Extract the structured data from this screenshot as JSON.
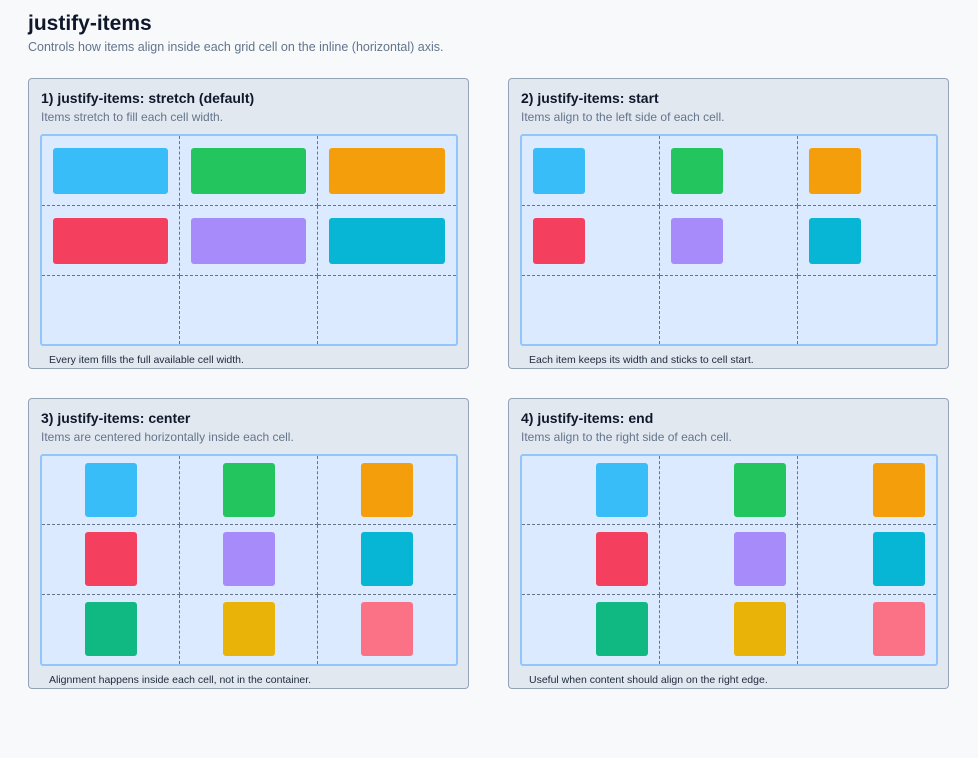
{
  "page": {
    "title": "justify-items",
    "subtitle": "Controls how items align inside each grid cell on the inline (horizontal) axis."
  },
  "panels": [
    {
      "title": "1) justify-items: stretch (default)",
      "desc": "Items stretch to fill each cell width.",
      "note": "Every item fills the full available cell width.",
      "items": [
        "#38bdf8",
        "#22c55e",
        "#f59e0b",
        "#f43f5e",
        "#a78bfa",
        "#06b6d4"
      ]
    },
    {
      "title": "2) justify-items: start",
      "desc": "Items align to the left side of each cell.",
      "note": "Each item keeps its width and sticks to cell start.",
      "items": [
        "#38bdf8",
        "#22c55e",
        "#f59e0b",
        "#f43f5e",
        "#a78bfa",
        "#06b6d4"
      ]
    },
    {
      "title": "3) justify-items: center",
      "desc": "Items are centered horizontally inside each cell.",
      "note": "Alignment happens inside each cell, not in the container.",
      "items": [
        "#38bdf8",
        "#22c55e",
        "#f59e0b",
        "#f43f5e",
        "#a78bfa",
        "#06b6d4",
        "#10b981",
        "#eab308",
        "#fb7185"
      ]
    },
    {
      "title": "4) justify-items: end",
      "desc": "Items align to the right side of each cell.",
      "note": "Useful when content should align on the right edge.",
      "items": [
        "#38bdf8",
        "#22c55e",
        "#f59e0b",
        "#f43f5e",
        "#a78bfa",
        "#06b6d4",
        "#10b981",
        "#eab308",
        "#fb7185"
      ]
    }
  ]
}
